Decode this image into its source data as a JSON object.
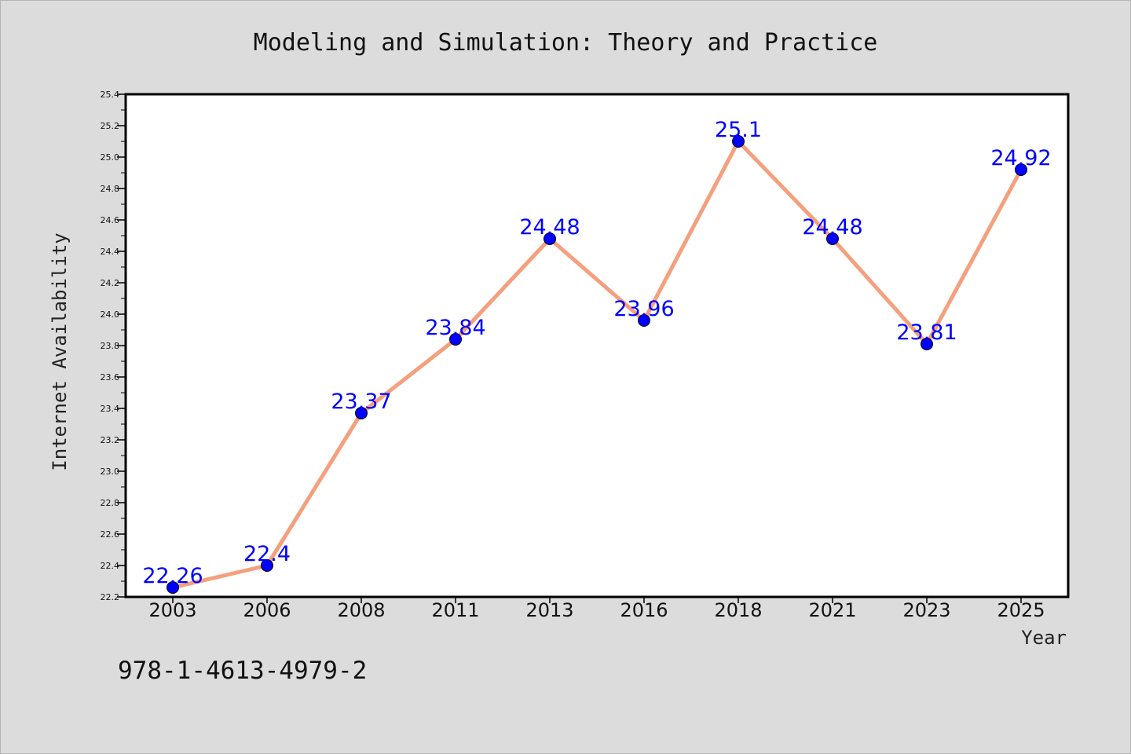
{
  "chart_data": {
    "type": "line",
    "title": "Modeling and Simulation: Theory and Practice",
    "xlabel": "Year",
    "ylabel": "Internet Availability",
    "categories": [
      "2003",
      "2006",
      "2008",
      "2011",
      "2013",
      "2016",
      "2018",
      "2021",
      "2023",
      "2025"
    ],
    "values": [
      22.26,
      22.4,
      23.37,
      23.84,
      24.48,
      23.96,
      25.1,
      24.48,
      23.81,
      24.92
    ],
    "data_labels": [
      "22.26",
      "22.4",
      "23.37",
      "23.84",
      "24.48",
      "23.96",
      "25.1",
      "24.48",
      "23.81",
      "24.92"
    ],
    "ylim": [
      22.2,
      25.4
    ],
    "yticks": [
      "22.2",
      "22.4",
      "22.6",
      "22.8",
      "23.0",
      "23.2",
      "23.4",
      "23.6",
      "23.8",
      "24.0",
      "24.2",
      "24.4",
      "24.6",
      "24.8",
      "25.0",
      "25.2",
      "25.4"
    ],
    "grid": false,
    "line_color": "#f4a07e",
    "marker_color": "#0000ff",
    "label_color": "#0000ff",
    "plot_background": "#ffffff",
    "page_background": "#dcdcdc"
  },
  "footnote": "978-1-4613-4979-2"
}
